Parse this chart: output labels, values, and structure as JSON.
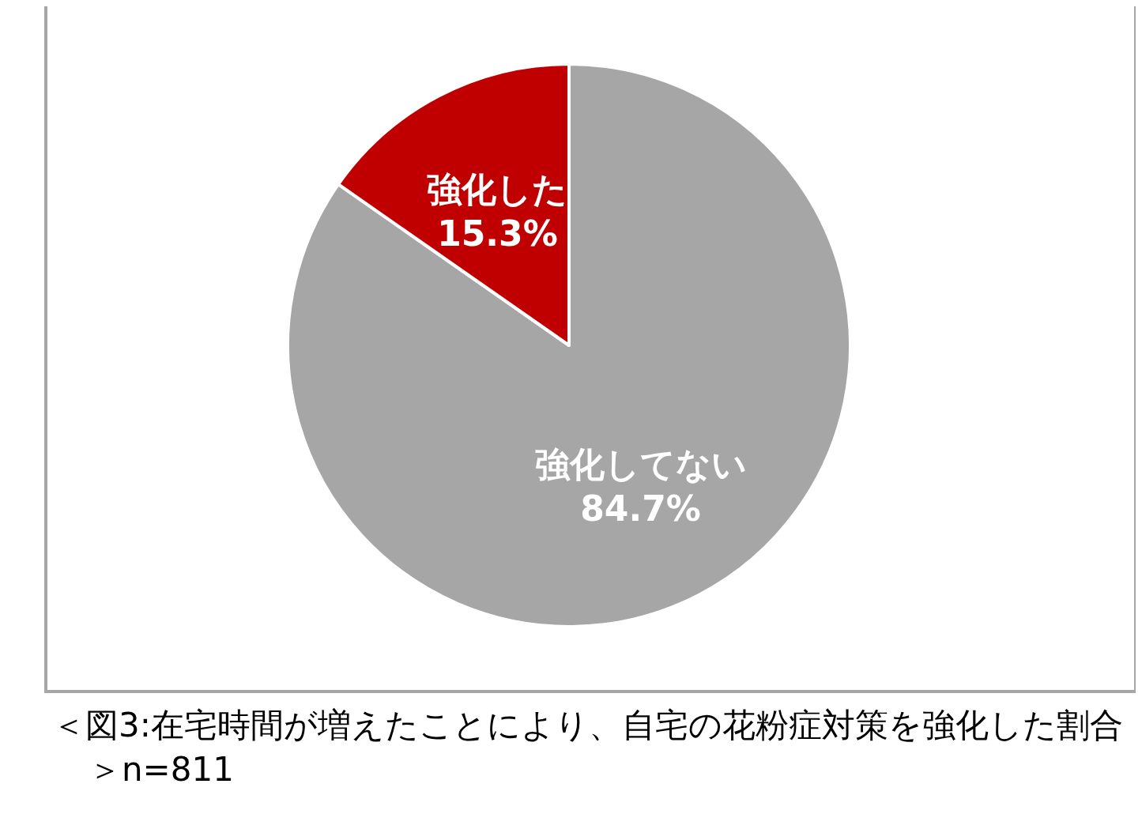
{
  "chart_data": {
    "type": "pie",
    "categories": [
      "強化してない",
      "強化した"
    ],
    "values": [
      84.7,
      15.3
    ],
    "colors": [
      "#a6a6a6",
      "#c00000"
    ],
    "value_labels": [
      "84.7%",
      "15.3%"
    ],
    "annotations": [
      "＜図3:在宅時間が増えたことにより、自宅の花粉症対策を強化した割合＞n=811"
    ]
  }
}
